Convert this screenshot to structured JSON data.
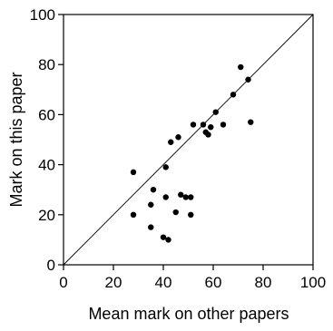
{
  "chart_data": {
    "type": "scatter",
    "title": "",
    "xlabel": "Mean mark on other papers",
    "ylabel": "Mark on this paper",
    "xlim": [
      0,
      100
    ],
    "ylim": [
      0,
      100
    ],
    "x_ticks": [
      0,
      20,
      40,
      60,
      80,
      100
    ],
    "y_ticks": [
      0,
      20,
      40,
      60,
      80,
      100
    ],
    "grid": false,
    "reference_line": {
      "type": "identity",
      "from": [
        0,
        0
      ],
      "to": [
        100,
        100
      ]
    },
    "series": [
      {
        "points": [
          {
            "x": 28,
            "y": 37
          },
          {
            "x": 28,
            "y": 20
          },
          {
            "x": 35,
            "y": 24
          },
          {
            "x": 36,
            "y": 30
          },
          {
            "x": 35,
            "y": 15
          },
          {
            "x": 40,
            "y": 11
          },
          {
            "x": 42,
            "y": 10
          },
          {
            "x": 41,
            "y": 27
          },
          {
            "x": 41,
            "y": 39
          },
          {
            "x": 43,
            "y": 49
          },
          {
            "x": 45,
            "y": 21
          },
          {
            "x": 46,
            "y": 51
          },
          {
            "x": 47,
            "y": 28
          },
          {
            "x": 49,
            "y": 27
          },
          {
            "x": 51,
            "y": 27
          },
          {
            "x": 51,
            "y": 20
          },
          {
            "x": 52,
            "y": 56
          },
          {
            "x": 56,
            "y": 56
          },
          {
            "x": 57,
            "y": 53
          },
          {
            "x": 58,
            "y": 52
          },
          {
            "x": 59,
            "y": 55
          },
          {
            "x": 61,
            "y": 61
          },
          {
            "x": 64,
            "y": 56
          },
          {
            "x": 68,
            "y": 68
          },
          {
            "x": 71,
            "y": 79
          },
          {
            "x": 74,
            "y": 74
          },
          {
            "x": 75,
            "y": 57
          }
        ]
      }
    ]
  }
}
